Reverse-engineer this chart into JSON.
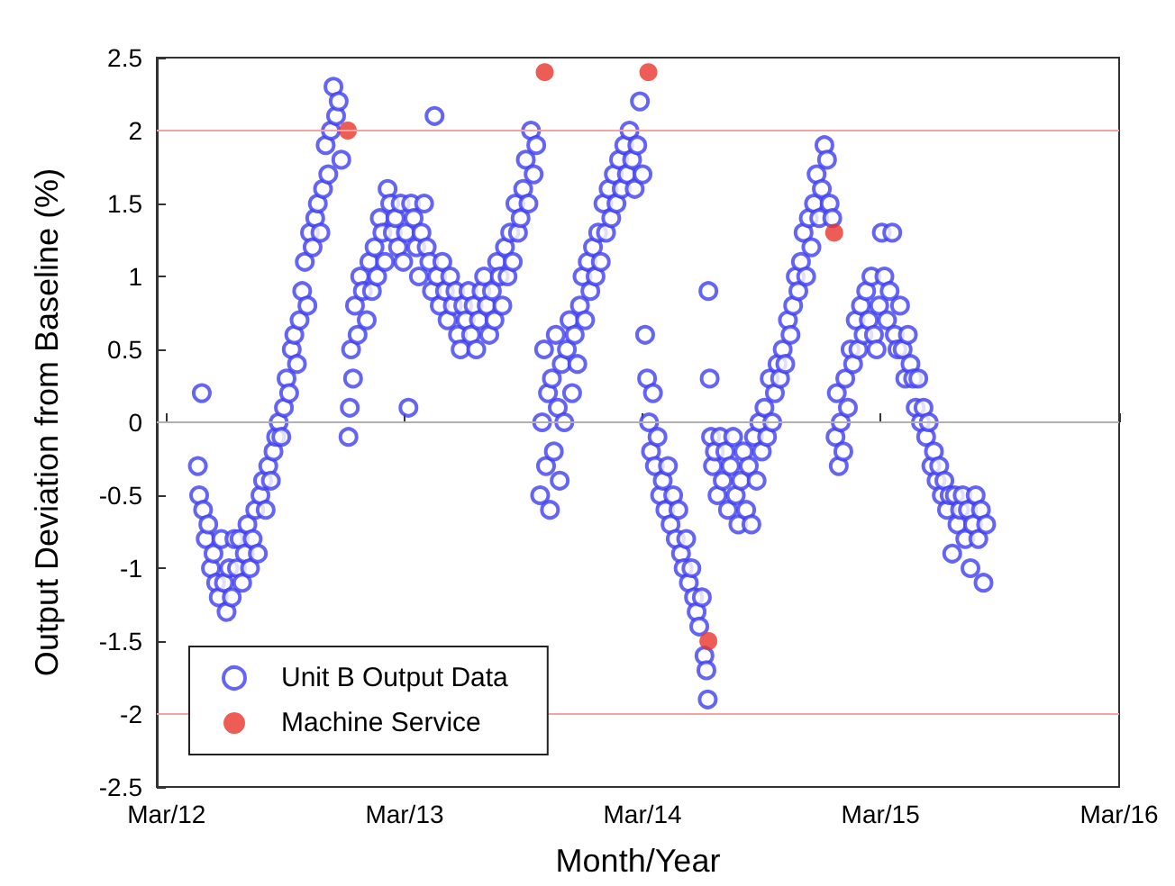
{
  "chart_data": {
    "type": "scatter",
    "xlabel": "Month/Year",
    "ylabel": "Output Deviation from Baseline (%)",
    "xlim": [
      "2012-02-15",
      "2016-03-01"
    ],
    "xticks": [
      {
        "value": "2012-03-01",
        "label": "Mar/12"
      },
      {
        "value": "2013-03-01",
        "label": "Mar/13"
      },
      {
        "value": "2014-03-01",
        "label": "Mar/14"
      },
      {
        "value": "2015-03-01",
        "label": "Mar/15"
      },
      {
        "value": "2016-03-01",
        "label": "Mar/16"
      }
    ],
    "ylim": [
      -2.5,
      2.5
    ],
    "yticks": [
      -2.5,
      -2,
      -1.5,
      -1,
      -0.5,
      0,
      0.5,
      1,
      1.5,
      2,
      2.5
    ],
    "grid": false,
    "legend": "bottom left",
    "marker": "circle",
    "ref_lines": [
      {
        "axis": "y",
        "value": 2,
        "color": "#f4a3a3"
      },
      {
        "axis": "y",
        "value": 0,
        "color": "#b0b0b0"
      },
      {
        "axis": "y",
        "value": -2,
        "color": "#f4a3a3"
      }
    ],
    "series": [
      {
        "name": "Unit B Output Data",
        "color": "#3f3ff2",
        "x": [
          "2012-04-18",
          "2012-04-20",
          "2012-04-24",
          "2012-04-26",
          "2012-04-30",
          "2012-05-04",
          "2012-05-08",
          "2012-05-12",
          "2012-05-16",
          "2012-05-20",
          "2012-05-24",
          "2012-05-28",
          "2012-06-01",
          "2012-06-05",
          "2012-06-09",
          "2012-06-13",
          "2012-06-17",
          "2012-06-21",
          "2012-06-25",
          "2012-06-29",
          "2012-07-03",
          "2012-07-07",
          "2012-07-11",
          "2012-07-15",
          "2012-07-19",
          "2012-07-23",
          "2012-07-27",
          "2012-07-31",
          "2012-08-04",
          "2012-08-08",
          "2012-08-12",
          "2012-08-16",
          "2012-08-20",
          "2012-08-24",
          "2012-08-28",
          "2012-09-01",
          "2012-09-05",
          "2012-09-09",
          "2012-09-13",
          "2012-09-17",
          "2012-09-21",
          "2012-09-25",
          "2012-09-29",
          "2012-10-03",
          "2012-10-07",
          "2012-10-11",
          "2012-10-15",
          "2012-10-19",
          "2012-10-23",
          "2012-10-27",
          "2012-10-31",
          "2012-11-04",
          "2012-11-08",
          "2012-11-12",
          "2012-11-16",
          "2012-11-20",
          "2012-11-24",
          "2012-12-05",
          "2012-12-07",
          "2012-12-09",
          "2012-12-12",
          "2012-12-15",
          "2012-12-19",
          "2012-12-23",
          "2012-12-27",
          "2013-01-02",
          "2013-01-06",
          "2013-01-10",
          "2013-01-14",
          "2013-01-18",
          "2013-01-22",
          "2013-01-26",
          "2013-01-30",
          "2013-02-03",
          "2013-02-07",
          "2013-02-11",
          "2013-02-15",
          "2013-02-19",
          "2013-02-23",
          "2013-02-27",
          "2013-03-03",
          "2013-03-07",
          "2013-03-11",
          "2013-03-15",
          "2013-03-19",
          "2013-03-23",
          "2013-03-27",
          "2013-03-31",
          "2013-04-04",
          "2013-04-08",
          "2013-04-12",
          "2013-04-16",
          "2013-04-20",
          "2013-04-24",
          "2013-04-28",
          "2013-05-02",
          "2013-05-06",
          "2013-05-10",
          "2013-05-14",
          "2013-05-18",
          "2013-05-22",
          "2013-05-26",
          "2013-05-30",
          "2013-06-03",
          "2013-06-07",
          "2013-06-11",
          "2013-06-15",
          "2013-06-19",
          "2013-06-23",
          "2013-06-27",
          "2013-07-01",
          "2013-07-05",
          "2013-07-09",
          "2013-07-13",
          "2013-07-17",
          "2013-07-21",
          "2013-07-25",
          "2013-07-29",
          "2013-08-02",
          "2013-08-06",
          "2013-08-10",
          "2013-08-14",
          "2013-08-18",
          "2013-08-22",
          "2013-08-26",
          "2013-08-30",
          "2013-09-03",
          "2013-09-07",
          "2013-09-11",
          "2013-09-15",
          "2013-09-19",
          "2013-09-25",
          "2013-09-28",
          "2013-10-01",
          "2013-10-04",
          "2013-10-07",
          "2013-10-10",
          "2013-10-13",
          "2013-10-16",
          "2013-10-19",
          "2013-10-22",
          "2013-10-25",
          "2013-10-28",
          "2013-11-01",
          "2013-11-05",
          "2013-11-09",
          "2013-11-13",
          "2013-11-17",
          "2013-11-21",
          "2013-11-25",
          "2013-11-29",
          "2013-12-03",
          "2013-12-07",
          "2013-12-11",
          "2013-12-15",
          "2013-12-19",
          "2013-12-23",
          "2013-12-27",
          "2013-12-31",
          "2014-01-04",
          "2014-01-08",
          "2014-01-12",
          "2014-01-16",
          "2014-01-20",
          "2014-01-24",
          "2014-01-28",
          "2014-02-01",
          "2014-02-05",
          "2014-02-09",
          "2014-02-13",
          "2014-02-17",
          "2014-02-21",
          "2014-02-25",
          "2014-03-01",
          "2014-03-05",
          "2014-03-08",
          "2014-03-11",
          "2014-03-14",
          "2014-03-17",
          "2014-03-20",
          "2014-03-24",
          "2014-03-28",
          "2014-04-01",
          "2014-04-05",
          "2014-04-09",
          "2014-04-13",
          "2014-04-17",
          "2014-04-21",
          "2014-04-25",
          "2014-04-29",
          "2014-05-03",
          "2014-05-07",
          "2014-05-11",
          "2014-05-15",
          "2014-05-19",
          "2014-05-23",
          "2014-05-27",
          "2014-05-31",
          "2014-06-04",
          "2014-06-07",
          "2014-06-09",
          "2014-06-10",
          "2014-06-12",
          "2014-06-14",
          "2014-06-17",
          "2014-06-20",
          "2014-06-24",
          "2014-06-28",
          "2014-07-02",
          "2014-07-06",
          "2014-07-10",
          "2014-07-14",
          "2014-07-18",
          "2014-07-22",
          "2014-07-26",
          "2014-07-30",
          "2014-08-03",
          "2014-08-07",
          "2014-08-11",
          "2014-08-15",
          "2014-08-19",
          "2014-08-23",
          "2014-08-27",
          "2014-08-31",
          "2014-09-04",
          "2014-09-08",
          "2014-09-12",
          "2014-09-16",
          "2014-09-20",
          "2014-09-24",
          "2014-09-28",
          "2014-10-02",
          "2014-10-06",
          "2014-10-10",
          "2014-10-14",
          "2014-10-18",
          "2014-10-22",
          "2014-10-26",
          "2014-10-30",
          "2014-11-03",
          "2014-11-07",
          "2014-11-11",
          "2014-11-15",
          "2014-11-19",
          "2014-11-23",
          "2014-11-27",
          "2014-12-01",
          "2014-12-05",
          "2014-12-09",
          "2014-12-13",
          "2014-12-17",
          "2014-12-22",
          "2014-12-24",
          "2014-12-27",
          "2014-12-30",
          "2015-01-03",
          "2015-01-06",
          "2015-01-10",
          "2015-01-14",
          "2015-01-18",
          "2015-01-22",
          "2015-01-26",
          "2015-01-30",
          "2015-02-03",
          "2015-02-07",
          "2015-02-11",
          "2015-02-15",
          "2015-02-19",
          "2015-02-23",
          "2015-02-27",
          "2015-03-03",
          "2015-03-07",
          "2015-03-11",
          "2015-03-15",
          "2015-03-19",
          "2015-03-23",
          "2015-03-27",
          "2015-03-31",
          "2015-04-04",
          "2015-04-08",
          "2015-04-12",
          "2015-04-16",
          "2015-04-20",
          "2015-04-24",
          "2015-04-28",
          "2015-05-02",
          "2015-05-06",
          "2015-05-10",
          "2015-05-14",
          "2015-05-18",
          "2015-05-22",
          "2015-05-26",
          "2015-05-30",
          "2015-06-03",
          "2015-06-07",
          "2015-06-11",
          "2015-06-15",
          "2015-06-19",
          "2015-06-23",
          "2015-06-27",
          "2015-07-01",
          "2015-07-05",
          "2015-07-09",
          "2015-07-13",
          "2015-07-17",
          "2015-07-21",
          "2015-07-25",
          "2015-07-29",
          "2015-08-02",
          "2015-08-06",
          "2015-08-10"
        ],
        "values": [
          -0.3,
          -0.5,
          0.2,
          -0.6,
          -0.8,
          -0.7,
          -1.0,
          -0.9,
          -1.1,
          -1.2,
          -0.8,
          -1.1,
          -1.3,
          -1.0,
          -1.2,
          -0.8,
          -1.0,
          -0.8,
          -1.1,
          -0.9,
          -0.7,
          -1.0,
          -0.8,
          -0.6,
          -0.9,
          -0.5,
          -0.4,
          -0.6,
          -0.3,
          -0.4,
          -0.2,
          -0.1,
          0.0,
          -0.1,
          0.1,
          0.3,
          0.2,
          0.5,
          0.6,
          0.4,
          0.7,
          0.9,
          1.1,
          0.8,
          1.3,
          1.2,
          1.4,
          1.5,
          1.3,
          1.6,
          1.9,
          1.7,
          2.0,
          2.3,
          2.1,
          2.2,
          1.8,
          -0.1,
          0.1,
          0.5,
          0.3,
          0.8,
          0.6,
          1.0,
          0.9,
          0.7,
          1.1,
          0.9,
          1.2,
          1.0,
          1.4,
          1.3,
          1.1,
          1.6,
          1.5,
          1.3,
          1.4,
          1.2,
          1.5,
          1.1,
          1.3,
          0.1,
          1.5,
          1.4,
          1.2,
          1.0,
          1.3,
          1.5,
          1.2,
          1.1,
          0.9,
          2.1,
          1.0,
          0.8,
          1.1,
          0.9,
          0.7,
          1.0,
          0.8,
          0.9,
          0.6,
          0.5,
          0.8,
          0.7,
          0.9,
          0.6,
          0.8,
          0.5,
          0.7,
          0.9,
          1.0,
          0.8,
          0.6,
          0.9,
          0.7,
          1.1,
          1.0,
          0.8,
          1.2,
          1.0,
          1.3,
          1.1,
          1.5,
          1.3,
          1.4,
          1.6,
          1.8,
          1.5,
          2.0,
          1.7,
          1.9,
          -0.5,
          0.0,
          0.5,
          -0.3,
          0.2,
          -0.6,
          0.3,
          -0.2,
          0.6,
          0.1,
          -0.4,
          0.4,
          0.0,
          0.5,
          0.7,
          0.2,
          0.6,
          0.4,
          0.8,
          1.0,
          0.7,
          1.1,
          0.9,
          1.2,
          1.0,
          1.3,
          1.1,
          1.5,
          1.3,
          1.6,
          1.4,
          1.7,
          1.5,
          1.8,
          1.6,
          1.9,
          1.7,
          2.0,
          1.8,
          1.6,
          1.9,
          2.2,
          1.7,
          0.6,
          0.3,
          0.0,
          -0.2,
          0.2,
          -0.3,
          -0.1,
          -0.5,
          -0.4,
          -0.6,
          -0.3,
          -0.7,
          -0.5,
          -0.8,
          -0.6,
          -0.9,
          -1.0,
          -0.8,
          -1.1,
          -1.0,
          -1.2,
          -1.3,
          -1.4,
          -1.2,
          -1.6,
          -1.7,
          -1.9,
          0.9,
          0.3,
          -0.1,
          -0.3,
          -0.2,
          -0.5,
          -0.1,
          -0.4,
          -0.2,
          -0.6,
          -0.3,
          -0.1,
          -0.5,
          -0.7,
          -0.4,
          -0.2,
          -0.6,
          -0.3,
          -0.7,
          -0.1,
          -0.4,
          0.0,
          -0.2,
          0.1,
          -0.1,
          0.3,
          0.0,
          0.2,
          0.4,
          0.3,
          0.5,
          0.4,
          0.7,
          0.6,
          0.8,
          1.0,
          0.9,
          1.1,
          1.3,
          1.0,
          1.4,
          1.2,
          1.5,
          1.7,
          1.4,
          1.6,
          1.9,
          1.8,
          1.5,
          1.4,
          -0.1,
          0.2,
          -0.3,
          0.0,
          -0.2,
          0.3,
          0.1,
          0.5,
          0.4,
          0.7,
          0.5,
          0.8,
          0.6,
          0.9,
          0.7,
          1.0,
          0.6,
          0.5,
          0.8,
          1.3,
          1.0,
          0.7,
          0.9,
          1.3,
          0.6,
          0.5,
          0.8,
          0.5,
          0.3,
          0.6,
          0.4,
          0.3,
          0.1,
          0.3,
          0.0,
          0.1,
          -0.1,
          0.0,
          -0.3,
          -0.2,
          -0.4,
          -0.3,
          -0.5,
          -0.4,
          -0.6,
          -0.5,
          -0.9,
          -0.5,
          -0.7,
          -0.6,
          -0.5,
          -0.8,
          -0.6,
          -1.0,
          -0.7,
          -0.5,
          -0.8,
          -0.6,
          -1.1,
          -0.7
        ]
      },
      {
        "name": "Machine Service",
        "color": "#e8332a",
        "x": [
          "2012-12-04",
          "2013-10-02",
          "2014-03-10",
          "2014-06-10",
          "2014-12-20"
        ],
        "values": [
          2.0,
          2.4,
          2.4,
          -1.5,
          1.3
        ]
      }
    ]
  }
}
